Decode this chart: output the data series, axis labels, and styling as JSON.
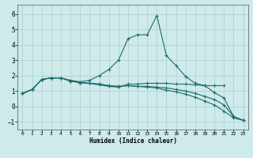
{
  "xlabel": "Humidex (Indice chaleur)",
  "xlim": [
    -0.5,
    23.5
  ],
  "ylim": [
    -1.5,
    6.6
  ],
  "yticks": [
    -1,
    0,
    1,
    2,
    3,
    4,
    5,
    6
  ],
  "xticks": [
    0,
    1,
    2,
    3,
    4,
    5,
    6,
    7,
    8,
    9,
    10,
    11,
    12,
    13,
    14,
    15,
    16,
    17,
    18,
    19,
    20,
    21,
    22,
    23
  ],
  "background_color": "#ceeaea",
  "grid_color": "#aed4d4",
  "line_color": "#1e6b6b",
  "lines": [
    {
      "x": [
        0,
        1,
        2,
        3,
        4,
        5,
        6,
        7,
        8,
        9,
        10,
        11,
        12,
        13,
        14,
        15,
        16,
        17,
        18,
        19,
        20,
        21
      ],
      "y": [
        0.85,
        1.1,
        1.75,
        1.85,
        1.85,
        1.65,
        1.55,
        1.5,
        1.4,
        1.3,
        1.25,
        1.45,
        1.45,
        1.5,
        1.5,
        1.5,
        1.45,
        1.45,
        1.4,
        1.35,
        1.35,
        1.35
      ]
    },
    {
      "x": [
        0,
        1,
        2,
        3,
        4,
        5,
        6,
        7,
        8,
        9,
        10,
        11,
        12,
        13,
        14,
        15,
        16,
        17,
        18,
        19,
        20,
        21,
        22,
        23
      ],
      "y": [
        0.85,
        1.1,
        1.75,
        1.85,
        1.85,
        1.7,
        1.6,
        1.7,
        2.0,
        2.4,
        3.0,
        4.4,
        4.65,
        4.65,
        5.9,
        3.3,
        2.65,
        1.95,
        1.5,
        1.35,
        0.9,
        0.55,
        -0.65,
        -0.9
      ]
    },
    {
      "x": [
        0,
        1,
        2,
        3,
        4,
        5,
        6,
        7,
        8,
        9,
        10,
        11,
        12,
        13,
        14,
        15,
        16,
        17,
        18,
        19,
        20,
        21,
        22,
        23
      ],
      "y": [
        0.85,
        1.1,
        1.75,
        1.85,
        1.85,
        1.65,
        1.55,
        1.5,
        1.45,
        1.35,
        1.3,
        1.35,
        1.3,
        1.3,
        1.25,
        1.2,
        1.1,
        1.0,
        0.85,
        0.65,
        0.45,
        0.1,
        -0.65,
        -0.9
      ]
    },
    {
      "x": [
        0,
        1,
        2,
        3,
        4,
        5,
        6,
        7,
        8,
        9,
        10,
        11,
        12,
        13,
        14,
        15,
        16,
        17,
        18,
        19,
        20,
        21,
        22,
        23
      ],
      "y": [
        0.85,
        1.1,
        1.75,
        1.85,
        1.85,
        1.65,
        1.55,
        1.5,
        1.45,
        1.35,
        1.3,
        1.35,
        1.3,
        1.25,
        1.2,
        1.05,
        0.95,
        0.8,
        0.6,
        0.35,
        0.1,
        -0.3,
        -0.75,
        -0.9
      ]
    }
  ]
}
